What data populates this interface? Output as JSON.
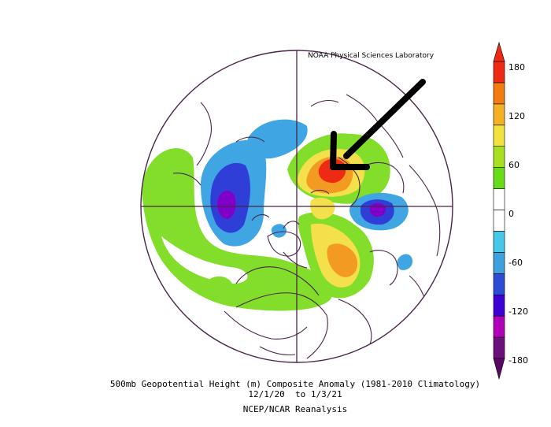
{
  "credit": "NOAA Physical Sciences Laboratory",
  "caption": {
    "line1": "500mb Geopotential Height (m) Composite Anomaly (1981-2010 Climatology)",
    "line2": "12/1/20  to 1/3/21",
    "line3": "NCEP/NCAR Reanalysis"
  },
  "colorbar": {
    "ticks": [
      "180",
      "120",
      "60",
      "0",
      "-60",
      "-120",
      "-180"
    ],
    "colors": [
      "#6d0e7d",
      "#b100b9",
      "#3d00d6",
      "#2c4bd7",
      "#3ea1df",
      "#46c8e8",
      "#ffffff",
      "#ffffff",
      "#66dd16",
      "#a7e020",
      "#f2e23d",
      "#f5b124",
      "#f47b0e",
      "#ee2a14"
    ]
  },
  "annotation": {
    "arrow": "black-arrow-pointing-at-positive-anomaly"
  },
  "anomaly_colors": {
    "strong_negative": "#8100c7",
    "negative": "#2f3ed6",
    "weak_negative": "#3fa5e3",
    "light_negative": "#7bd2f0",
    "weak_positive": "#82de2a",
    "positive": "#f4e04a",
    "strong_positive": "#f39a22",
    "max_positive": "#ee2a14"
  }
}
